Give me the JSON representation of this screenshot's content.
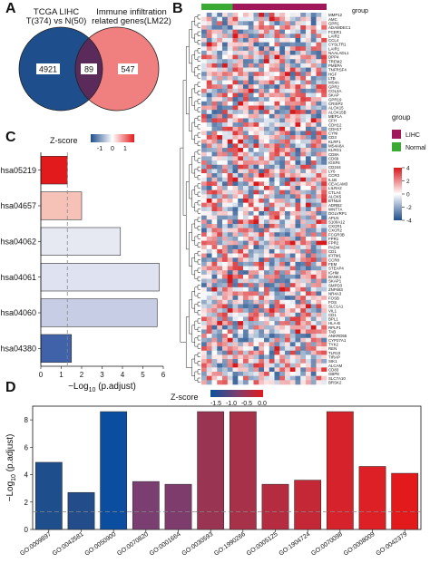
{
  "panels": {
    "a": "A",
    "b": "B",
    "c": "C",
    "d": "D"
  },
  "venn": {
    "left_title_line1": "TCGA LIHC",
    "left_title_line2": "T(374) vs N(50)",
    "right_title_line1": "Immune infiltration",
    "right_title_line2": "related genes(LM22)",
    "left_only": "4921",
    "overlap": "89",
    "right_only": "547",
    "colors": {
      "left": "#1f4e8c",
      "right": "#f08080",
      "overlap": "#5a2a5a"
    }
  },
  "heatmap": {
    "group_label": "group",
    "groups": [
      {
        "name": "LIHC",
        "color": "#a0185a"
      },
      {
        "name": "Normal",
        "color": "#3aaa35"
      }
    ],
    "group_bar": {
      "normal_fraction": 0.27
    },
    "color_scale": {
      "ticks": [
        "4",
        "2",
        "0",
        "-2",
        "-4"
      ],
      "low": "#1f4e8c",
      "mid": "#ffffff",
      "high": "#d7191c"
    },
    "genes": [
      "MMP12",
      "AMC",
      "GPR1",
      "ADAMDEC1",
      "FCER1",
      "LAIR2",
      "CCL4",
      "CYSLTR1",
      "LAIR1",
      "NAALADL1",
      "DPP4",
      "TREM2",
      "PMEPA",
      "TNFRSF4",
      "HGF",
      "LTB",
      "MS4A",
      "GPR2",
      "COL3A",
      "SKAP",
      "GPR19",
      "CRISP2",
      "ALOX15",
      "ALOX15B",
      "MEP1A",
      "CFH",
      "CDH12",
      "CDH17",
      "CYNI",
      "CD3",
      "KLRF1",
      "MS4A8A",
      "KLRG1",
      "CD8A",
      "CD69",
      "IGSF6",
      "CD244",
      "LY6",
      "CCR3",
      "IL1B",
      "CEACAM3",
      "LILRA2",
      "CTLA4",
      "ALOX5",
      "BTNL8",
      "ADRB2",
      "WNT7A",
      "DGLVRP1",
      "APLN",
      "S100A12",
      "CXCR1",
      "CXCR2",
      "FCGR3B",
      "FPR1",
      "FPR2",
      "PADI4",
      "CD1",
      "IFITM1",
      "CCR8",
      "FEM",
      "STEAP4",
      "IGHM",
      "BANK1",
      "SKAP1",
      "SMPD3",
      "ZNF683",
      "NR4A3",
      "FOSB",
      "FOS",
      "SLC1A1",
      "VIL1",
      "CD1",
      "BPL1",
      "HLA-B",
      "RPLP1",
      "TAB",
      "ANKRD55",
      "CYP27A1",
      "TYK2",
      "REN",
      "TLR10",
      "TIRAP",
      "SIK1",
      "ALCAM",
      "CD83",
      "GBP8",
      "SLC7A10",
      "BRSK2"
    ]
  },
  "kegg": {
    "zscore_title": "Z-score",
    "zscore_ticks": [
      "-1",
      "0",
      "1"
    ],
    "zscore_colors": {
      "low": "#1f4e8c",
      "mid": "#ffffff",
      "high": "#e31a1c"
    }
  },
  "go": {
    "zscore_title": "Z-score",
    "zscore_ticks": [
      "-1.5",
      "-1.0",
      "-0.5",
      "0.0"
    ],
    "zscore_colors": {
      "low": "#08519c",
      "high": "#e31a1c"
    }
  },
  "chart_data": [
    {
      "panel": "C",
      "type": "bar",
      "orientation": "horizontal",
      "categories": [
        "hsa05219",
        "hsa04657",
        "hsa04062",
        "hsa04061",
        "hsa04060",
        "hsa04380"
      ],
      "values": [
        1.3,
        2.0,
        3.9,
        5.8,
        5.7,
        1.5
      ],
      "zscore": [
        1.2,
        0.5,
        0.0,
        -0.1,
        -0.3,
        -1.2
      ],
      "colors": [
        "#e31a1c",
        "#f6c1b7",
        "#e6e8f2",
        "#dfe2f0",
        "#c8cde6",
        "#3f62a8"
      ],
      "xlabel": "-Log10 (p.adjust)",
      "xlabel_main": "−Log",
      "xlabel_sub": "10",
      "xlabel_tail": " (p.adjust)",
      "xlim": [
        0,
        6
      ],
      "xticks": [
        "0",
        "1",
        "2",
        "3",
        "4",
        "5",
        "6"
      ],
      "threshold": 1.3
    },
    {
      "panel": "D",
      "type": "bar",
      "categories": [
        "GO:0009897",
        "GO:0042581",
        "GO:0050900",
        "GO:0070820",
        "GO:0001664",
        "GO:0030593",
        "GO:1990266",
        "GO:0005125",
        "GO:1904724",
        "GO:0070098",
        "GO:0008009",
        "GO:0042379"
      ],
      "values": [
        4.9,
        2.7,
        8.6,
        3.5,
        3.3,
        8.6,
        8.6,
        3.3,
        3.6,
        8.6,
        4.6,
        4.1
      ],
      "colors": [
        "#1f4e8c",
        "#234c8a",
        "#0b4d9e",
        "#7a3e70",
        "#7e3c6c",
        "#9a3453",
        "#a8314a",
        "#b52b3f",
        "#c42736",
        "#d6222b",
        "#dd1f26",
        "#e31a1c"
      ],
      "ylabel": "-Log10 (p.adjust)",
      "ylabel_main": "−Log",
      "ylabel_sub": "10",
      "ylabel_tail": " (p.adjust)",
      "ylim": [
        0,
        9
      ],
      "yticks": [
        "0",
        "2",
        "4",
        "6",
        "8"
      ],
      "threshold": 1.3
    }
  ]
}
